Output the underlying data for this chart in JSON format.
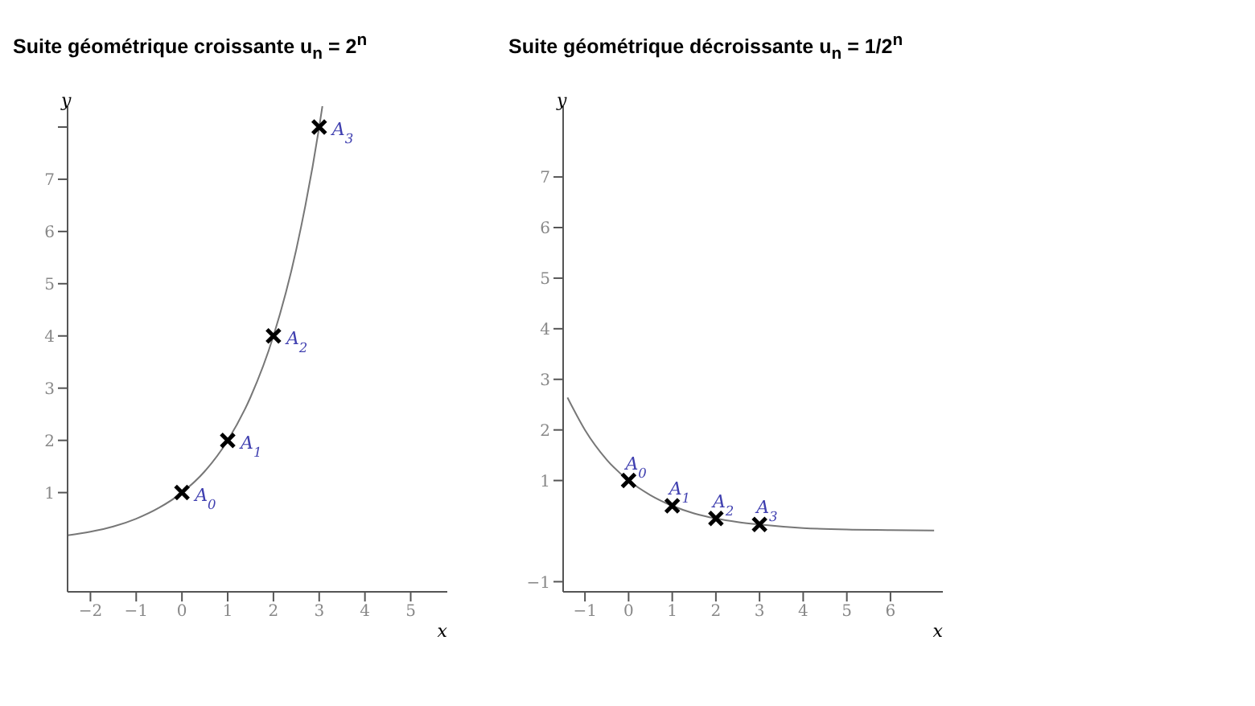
{
  "chart_data": [
    {
      "type": "line",
      "title": "Suite géométrique croissante u$_{n}$ = 2$^{n}$",
      "xlabel": "x",
      "ylabel": "y",
      "xlim": [
        -2.5,
        5.8
      ],
      "ylim": [
        -0.9,
        8.4
      ],
      "xticks": [
        -2,
        -1,
        0,
        1,
        2,
        3,
        4,
        5
      ],
      "yticks": [
        1,
        2,
        3,
        4,
        5,
        6,
        7,
        {
          "value": 8,
          "label": null
        }
      ],
      "grid": false,
      "legend": false,
      "series": [
        {
          "color": "#777777",
          "marker": "none",
          "x": [
            -2.5,
            -2,
            -1.5,
            -1,
            -0.5,
            0,
            0.5,
            1,
            1.5,
            2,
            2.5,
            3,
            3.07
          ],
          "values": [
            0.18,
            0.25,
            0.35,
            0.5,
            0.71,
            1,
            1.41,
            2,
            2.83,
            4,
            5.66,
            8,
            8.4
          ]
        },
        {
          "type": "scatter",
          "color": "#000000",
          "marker": "cross",
          "x": [
            0,
            1,
            2,
            3
          ],
          "values": [
            1,
            2,
            4,
            8
          ]
        }
      ],
      "annotations": [
        {
          "text": "A$_{0}$",
          "x": 0,
          "y": 1
        },
        {
          "text": "A$_{1}$",
          "x": 1,
          "y": 2
        },
        {
          "text": "A$_{2}$",
          "x": 2,
          "y": 4
        },
        {
          "text": "A$_{3}$",
          "x": 3,
          "y": 8
        }
      ]
    },
    {
      "type": "line",
      "title": "Suite géométrique décroissante u$_{n}$ = 1/2$^{n}$",
      "xlabel": "x",
      "ylabel": "y",
      "xlim": [
        -1.5,
        7.2
      ],
      "ylim": [
        -1.2,
        8.4
      ],
      "xticks": [
        -1,
        0,
        1,
        2,
        3,
        4,
        5,
        6
      ],
      "yticks": [
        -1,
        1,
        2,
        3,
        4,
        5,
        6,
        7
      ],
      "grid": false,
      "legend": false,
      "series": [
        {
          "color": "#777777",
          "marker": "none",
          "x": [
            -1.4,
            -1,
            -0.5,
            0,
            0.5,
            1,
            1.5,
            2,
            2.5,
            3,
            4,
            5,
            6,
            7
          ],
          "values": [
            2.64,
            2,
            1.41,
            1,
            0.71,
            0.5,
            0.35,
            0.25,
            0.18,
            0.13,
            0.06,
            0.03,
            0.02,
            0.01
          ]
        },
        {
          "type": "scatter",
          "color": "#000000",
          "marker": "cross",
          "x": [
            0,
            1,
            2,
            3
          ],
          "values": [
            1,
            0.5,
            0.25,
            0.13
          ]
        }
      ],
      "annotations": [
        {
          "text": "A$_{0}$",
          "x": 0,
          "y": 1
        },
        {
          "text": "A$_{1}$",
          "x": 1,
          "y": 0.5
        },
        {
          "text": "A$_{2}$",
          "x": 2,
          "y": 0.25
        },
        {
          "text": "A$_{3}$",
          "x": 3,
          "y": 0.13
        }
      ]
    }
  ]
}
